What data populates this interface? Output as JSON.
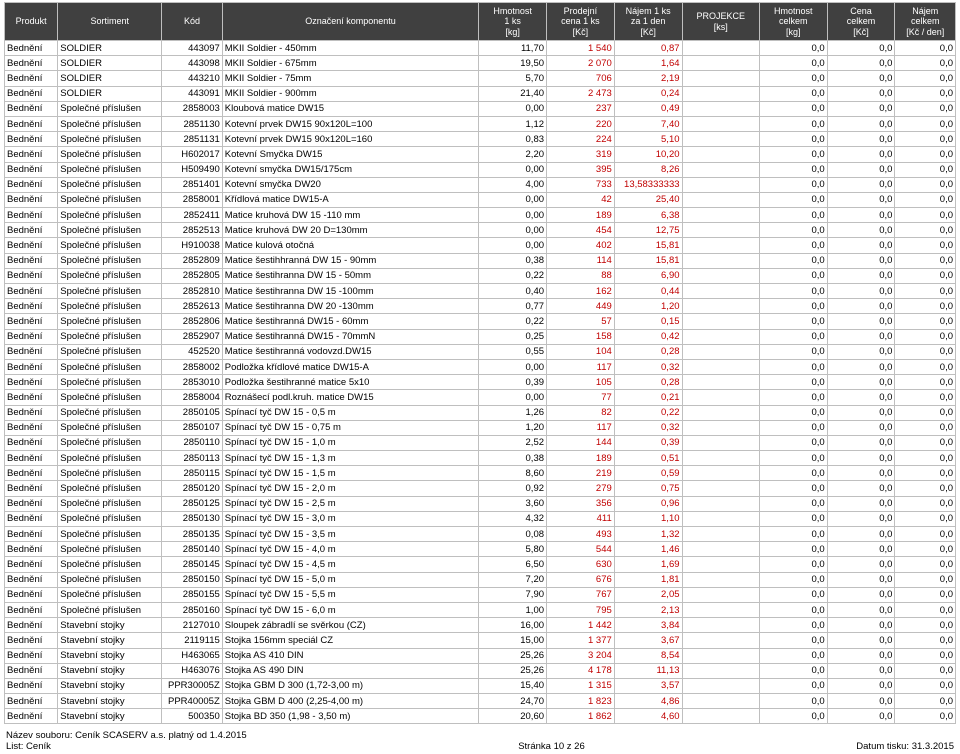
{
  "headers": {
    "produkt": "Produkt",
    "sortiment": "Sortiment",
    "kod": "Kód",
    "oznaceni": "Označení komponentu",
    "hmot1": "Hmotnost\n1 ks\n[kg]",
    "cena1": "Prodejní\ncena 1 ks\n[Kč]",
    "najem1": "Nájem 1 ks\nza 1 den\n[Kč]",
    "proj": "PROJEKCE\n[ks]",
    "hmotC": "Hmotnost\ncelkem\n[kg]",
    "cenaC": "Cena\ncelkem\n[Kč]",
    "najemC": "Nájem\ncelkem\n[Kč / den]"
  },
  "rows": [
    [
      "Bednění",
      "SOLDIER",
      "443097",
      "MKII Soldier - 450mm",
      "11,70",
      "1 540",
      "0,87",
      "",
      "0,0",
      "0,0",
      "0,0"
    ],
    [
      "Bednění",
      "SOLDIER",
      "443098",
      "MKII Soldier - 675mm",
      "19,50",
      "2 070",
      "1,64",
      "",
      "0,0",
      "0,0",
      "0,0"
    ],
    [
      "Bednění",
      "SOLDIER",
      "443210",
      "MKII Soldier - 75mm",
      "5,70",
      "706",
      "2,19",
      "",
      "0,0",
      "0,0",
      "0,0"
    ],
    [
      "Bednění",
      "SOLDIER",
      "443091",
      "MKII Soldier - 900mm",
      "21,40",
      "2 473",
      "0,24",
      "",
      "0,0",
      "0,0",
      "0,0"
    ],
    [
      "Bednění",
      "Společné příslušen",
      "2858003",
      "Kloubová matice DW15",
      "0,00",
      "237",
      "0,49",
      "",
      "0,0",
      "0,0",
      "0,0"
    ],
    [
      "Bednění",
      "Společné příslušen",
      "2851130",
      "Kotevní prvek DW15 90x120L=100",
      "1,12",
      "220",
      "7,40",
      "",
      "0,0",
      "0,0",
      "0,0"
    ],
    [
      "Bednění",
      "Společné příslušen",
      "2851131",
      "Kotevní prvek DW15 90x120L=160",
      "0,83",
      "224",
      "5,10",
      "",
      "0,0",
      "0,0",
      "0,0"
    ],
    [
      "Bednění",
      "Společné příslušen",
      "H602017",
      "Kotevní Smyčka DW15",
      "2,20",
      "319",
      "10,20",
      "",
      "0,0",
      "0,0",
      "0,0"
    ],
    [
      "Bednění",
      "Společné příslušen",
      "H509490",
      "Kotevní smyčka DW15/175cm",
      "0,00",
      "395",
      "8,26",
      "",
      "0,0",
      "0,0",
      "0,0"
    ],
    [
      "Bednění",
      "Společné příslušen",
      "2851401",
      "Kotevní smyčka DW20",
      "4,00",
      "733",
      "13,58333333",
      "",
      "0,0",
      "0,0",
      "0,0"
    ],
    [
      "Bednění",
      "Společné příslušen",
      "2858001",
      "Křídlová matice DW15-A",
      "0,00",
      "42",
      "25,40",
      "",
      "0,0",
      "0,0",
      "0,0"
    ],
    [
      "Bednění",
      "Společné příslušen",
      "2852411",
      "Matice kruhová DW 15 -110 mm",
      "0,00",
      "189",
      "6,38",
      "",
      "0,0",
      "0,0",
      "0,0"
    ],
    [
      "Bednění",
      "Společné příslušen",
      "2852513",
      "Matice kruhová DW 20 D=130mm",
      "0,00",
      "454",
      "12,75",
      "",
      "0,0",
      "0,0",
      "0,0"
    ],
    [
      "Bednění",
      "Společné příslušen",
      "H910038",
      "Matice kulová otočná",
      "0,00",
      "402",
      "15,81",
      "",
      "0,0",
      "0,0",
      "0,0"
    ],
    [
      "Bednění",
      "Společné příslušen",
      "2852809",
      "Matice šestihhranná DW 15 - 90mm",
      "0,38",
      "114",
      "15,81",
      "",
      "0,0",
      "0,0",
      "0,0"
    ],
    [
      "Bednění",
      "Společné příslušen",
      "2852805",
      "Matice šestihranna DW 15 - 50mm",
      "0,22",
      "88",
      "6,90",
      "",
      "0,0",
      "0,0",
      "0,0"
    ],
    [
      "Bednění",
      "Společné příslušen",
      "2852810",
      "Matice šestihranna DW 15 -100mm",
      "0,40",
      "162",
      "0,44",
      "",
      "0,0",
      "0,0",
      "0,0"
    ],
    [
      "Bednění",
      "Společné příslušen",
      "2852613",
      "Matice šestihranna DW 20 -130mm",
      "0,77",
      "449",
      "1,20",
      "",
      "0,0",
      "0,0",
      "0,0"
    ],
    [
      "Bednění",
      "Společné příslušen",
      "2852806",
      "Matice šestihranná DW15 - 60mm",
      "0,22",
      "57",
      "0,15",
      "",
      "0,0",
      "0,0",
      "0,0"
    ],
    [
      "Bednění",
      "Společné příslušen",
      "2852907",
      "Matice šestihranná DW15 - 70mmN",
      "0,25",
      "158",
      "0,42",
      "",
      "0,0",
      "0,0",
      "0,0"
    ],
    [
      "Bednění",
      "Společné příslušen",
      "452520",
      "Matice šestihranná vodovzd.DW15",
      "0,55",
      "104",
      "0,28",
      "",
      "0,0",
      "0,0",
      "0,0"
    ],
    [
      "Bednění",
      "Společné příslušen",
      "2858002",
      "Podložka křídlové matice DW15-A",
      "0,00",
      "117",
      "0,32",
      "",
      "0,0",
      "0,0",
      "0,0"
    ],
    [
      "Bednění",
      "Společné příslušen",
      "2853010",
      "Podložka šestihranné matice 5x10",
      "0,39",
      "105",
      "0,28",
      "",
      "0,0",
      "0,0",
      "0,0"
    ],
    [
      "Bednění",
      "Společné příslušen",
      "2858004",
      "Roznášecí podl.kruh. matice DW15",
      "0,00",
      "77",
      "0,21",
      "",
      "0,0",
      "0,0",
      "0,0"
    ],
    [
      "Bednění",
      "Společné příslušen",
      "2850105",
      "Spínací tyč DW 15 - 0,5 m",
      "1,26",
      "82",
      "0,22",
      "",
      "0,0",
      "0,0",
      "0,0"
    ],
    [
      "Bednění",
      "Společné příslušen",
      "2850107",
      "Spínací tyč DW 15 - 0,75 m",
      "1,20",
      "117",
      "0,32",
      "",
      "0,0",
      "0,0",
      "0,0"
    ],
    [
      "Bednění",
      "Společné příslušen",
      "2850110",
      "Spínací tyč DW 15 - 1,0 m",
      "2,52",
      "144",
      "0,39",
      "",
      "0,0",
      "0,0",
      "0,0"
    ],
    [
      "Bednění",
      "Společné příslušen",
      "2850113",
      "Spínací tyč DW 15 - 1,3 m",
      "0,38",
      "189",
      "0,51",
      "",
      "0,0",
      "0,0",
      "0,0"
    ],
    [
      "Bednění",
      "Společné příslušen",
      "2850115",
      "Spínací tyč DW 15 - 1,5 m",
      "8,60",
      "219",
      "0,59",
      "",
      "0,0",
      "0,0",
      "0,0"
    ],
    [
      "Bednění",
      "Společné příslušen",
      "2850120",
      "Spínací tyč DW 15 - 2,0 m",
      "0,92",
      "279",
      "0,75",
      "",
      "0,0",
      "0,0",
      "0,0"
    ],
    [
      "Bednění",
      "Společné příslušen",
      "2850125",
      "Spínací tyč DW 15 - 2,5 m",
      "3,60",
      "356",
      "0,96",
      "",
      "0,0",
      "0,0",
      "0,0"
    ],
    [
      "Bednění",
      "Společné příslušen",
      "2850130",
      "Spínací tyč DW 15 - 3,0 m",
      "4,32",
      "411",
      "1,10",
      "",
      "0,0",
      "0,0",
      "0,0"
    ],
    [
      "Bednění",
      "Společné příslušen",
      "2850135",
      "Spínací tyč DW 15 - 3,5 m",
      "0,08",
      "493",
      "1,32",
      "",
      "0,0",
      "0,0",
      "0,0"
    ],
    [
      "Bednění",
      "Společné příslušen",
      "2850140",
      "Spínací tyč DW 15 - 4,0 m",
      "5,80",
      "544",
      "1,46",
      "",
      "0,0",
      "0,0",
      "0,0"
    ],
    [
      "Bednění",
      "Společné příslušen",
      "2850145",
      "Spínací tyč DW 15 - 4,5 m",
      "6,50",
      "630",
      "1,69",
      "",
      "0,0",
      "0,0",
      "0,0"
    ],
    [
      "Bednění",
      "Společné příslušen",
      "2850150",
      "Spínací tyč DW 15 - 5,0 m",
      "7,20",
      "676",
      "1,81",
      "",
      "0,0",
      "0,0",
      "0,0"
    ],
    [
      "Bednění",
      "Společné příslušen",
      "2850155",
      "Spínací tyč DW 15 - 5,5 m",
      "7,90",
      "767",
      "2,05",
      "",
      "0,0",
      "0,0",
      "0,0"
    ],
    [
      "Bednění",
      "Společné příslušen",
      "2850160",
      "Spínací tyč DW 15 - 6,0 m",
      "1,00",
      "795",
      "2,13",
      "",
      "0,0",
      "0,0",
      "0,0"
    ],
    [
      "Bednění",
      "Stavební stojky",
      "2127010",
      "Sloupek zábradlí se svěrkou (CZ)",
      "16,00",
      "1 442",
      "3,84",
      "",
      "0,0",
      "0,0",
      "0,0"
    ],
    [
      "Bednění",
      "Stavební stojky",
      "2119115",
      "Stojka 156mm speciál CZ",
      "15,00",
      "1 377",
      "3,67",
      "",
      "0,0",
      "0,0",
      "0,0"
    ],
    [
      "Bednění",
      "Stavební stojky",
      "H463065",
      "Stojka AS 410 DIN",
      "25,26",
      "3 204",
      "8,54",
      "",
      "0,0",
      "0,0",
      "0,0"
    ],
    [
      "Bednění",
      "Stavební stojky",
      "H463076",
      "Stojka AS 490 DIN",
      "25,26",
      "4 178",
      "11,13",
      "",
      "0,0",
      "0,0",
      "0,0"
    ],
    [
      "Bednění",
      "Stavební stojky",
      "PPR30005Z",
      "Stojka GBM D 300 (1,72-3,00 m)",
      "15,40",
      "1 315",
      "3,57",
      "",
      "0,0",
      "0,0",
      "0,0"
    ],
    [
      "Bednění",
      "Stavební stojky",
      "PPR40005Z",
      "Stojka GBM D 400 (2,25-4,00 m)",
      "24,70",
      "1 823",
      "4,86",
      "",
      "0,0",
      "0,0",
      "0,0"
    ],
    [
      "Bednění",
      "Stavební stojky",
      "500350",
      "Stojka BD 350 (1,98 - 3,50 m)",
      "20,60",
      "1 862",
      "4,60",
      "",
      "0,0",
      "0,0",
      "0,0"
    ]
  ],
  "footer": {
    "left1": "Název souboru: Ceník SCASERV a.s. platný od 1.4.2015",
    "left2": "List: Ceník",
    "center": "Stránka 10 z 26",
    "right": "Datum tisku: 31.3.2015"
  },
  "colors": {
    "header_bg": "#404040",
    "header_fg": "#ffffff",
    "border": "#bfbfbf",
    "red": "#c00000"
  }
}
